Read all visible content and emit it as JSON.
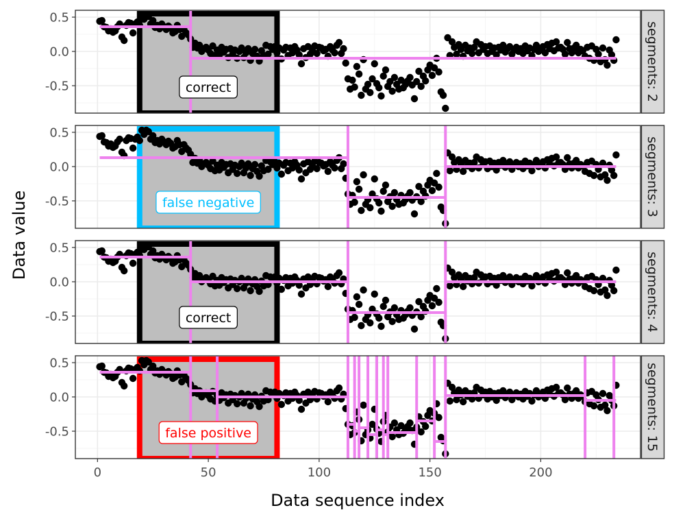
{
  "chart_data": {
    "type": "scatter",
    "xlabel": "Data sequence index",
    "ylabel": "Data value",
    "xlim": [
      -10,
      245
    ],
    "ylim": [
      -0.9,
      0.6
    ],
    "xticks": [
      0,
      50,
      100,
      150,
      200
    ],
    "yticks": [
      0.5,
      0.0,
      -0.5
    ],
    "ytick_labels": [
      "0.5",
      "0.0",
      "-0.5"
    ],
    "grid": true,
    "points": [
      [
        1,
        0.44
      ],
      [
        2,
        0.45
      ],
      [
        3,
        0.36
      ],
      [
        4,
        0.35
      ],
      [
        5,
        0.3
      ],
      [
        6,
        0.33
      ],
      [
        7,
        0.28
      ],
      [
        8,
        0.3
      ],
      [
        9,
        0.36
      ],
      [
        10,
        0.4
      ],
      [
        11,
        0.21
      ],
      [
        12,
        0.16
      ],
      [
        13,
        0.38
      ],
      [
        14,
        0.42
      ],
      [
        15,
        0.41
      ],
      [
        16,
        0.27
      ],
      [
        17,
        0.4
      ],
      [
        18,
        0.43
      ],
      [
        19,
        0.38
      ],
      [
        20,
        0.53
      ],
      [
        21,
        0.47
      ],
      [
        22,
        0.53
      ],
      [
        23,
        0.51
      ],
      [
        24,
        0.4
      ],
      [
        25,
        0.45
      ],
      [
        26,
        0.35
      ],
      [
        27,
        0.38
      ],
      [
        28,
        0.33
      ],
      [
        29,
        0.4
      ],
      [
        30,
        0.36
      ],
      [
        31,
        0.32
      ],
      [
        32,
        0.37
      ],
      [
        33,
        0.34
      ],
      [
        34,
        0.27
      ],
      [
        35,
        0.29
      ],
      [
        36,
        0.38
      ],
      [
        37,
        0.32
      ],
      [
        38,
        0.22
      ],
      [
        39,
        0.32
      ],
      [
        40,
        0.27
      ],
      [
        41,
        0.24
      ],
      [
        42,
        0.18
      ],
      [
        43,
        0.06
      ],
      [
        44,
        0.12
      ],
      [
        45,
        0.05
      ],
      [
        46,
        0.09
      ],
      [
        47,
        0.0
      ],
      [
        48,
        0.04
      ],
      [
        49,
        0.06
      ],
      [
        50,
        0.02
      ],
      [
        51,
        -0.03
      ],
      [
        52,
        0.08
      ],
      [
        53,
        -0.06
      ],
      [
        54,
        0.02
      ],
      [
        55,
        -0.05
      ],
      [
        56,
        0.06
      ],
      [
        57,
        -0.01
      ],
      [
        58,
        0.03
      ],
      [
        59,
        -0.09
      ],
      [
        60,
        0.04
      ],
      [
        61,
        -0.04
      ],
      [
        62,
        0.02
      ],
      [
        63,
        -0.1
      ],
      [
        64,
        0.0
      ],
      [
        65,
        0.05
      ],
      [
        66,
        -0.09
      ],
      [
        67,
        -0.02
      ],
      [
        68,
        0.04
      ],
      [
        69,
        -0.13
      ],
      [
        70,
        -0.03
      ],
      [
        71,
        0.03
      ],
      [
        72,
        -0.07
      ],
      [
        73,
        -0.14
      ],
      [
        74,
        0.01
      ],
      [
        75,
        -0.06
      ],
      [
        76,
        0.09
      ],
      [
        77,
        -0.04
      ],
      [
        78,
        0.07
      ],
      [
        79,
        0.03
      ],
      [
        80,
        0.07
      ],
      [
        81,
        -0.02
      ],
      [
        82,
        0.05
      ],
      [
        83,
        -0.11
      ],
      [
        84,
        0.02
      ],
      [
        85,
        0.06
      ],
      [
        86,
        -0.06
      ],
      [
        87,
        0.05
      ],
      [
        88,
        -0.02
      ],
      [
        89,
        0.07
      ],
      [
        90,
        0.02
      ],
      [
        91,
        -0.05
      ],
      [
        92,
        -0.18
      ],
      [
        93,
        0.04
      ],
      [
        94,
        -0.09
      ],
      [
        95,
        0.07
      ],
      [
        96,
        -0.04
      ],
      [
        97,
        0.01
      ],
      [
        98,
        0.08
      ],
      [
        99,
        -0.03
      ],
      [
        100,
        0.06
      ],
      [
        101,
        0.05
      ],
      [
        102,
        0.01
      ],
      [
        103,
        0.03
      ],
      [
        104,
        -0.07
      ],
      [
        105,
        0.07
      ],
      [
        106,
        0.02
      ],
      [
        107,
        -0.02
      ],
      [
        108,
        0.09
      ],
      [
        109,
        0.13
      ],
      [
        110,
        -0.03
      ],
      [
        111,
        0.04
      ],
      [
        112,
        -0.17
      ],
      [
        113,
        -0.4
      ],
      [
        114,
        -0.55
      ],
      [
        115,
        -0.42
      ],
      [
        116,
        -0.52
      ],
      [
        117,
        -0.22
      ],
      [
        118,
        -0.33
      ],
      [
        119,
        -0.64
      ],
      [
        120,
        -0.12
      ],
      [
        121,
        -0.55
      ],
      [
        122,
        -0.48
      ],
      [
        123,
        -0.6
      ],
      [
        124,
        -0.4
      ],
      [
        125,
        -0.18
      ],
      [
        126,
        -0.47
      ],
      [
        127,
        -0.53
      ],
      [
        128,
        -0.65
      ],
      [
        129,
        -0.36
      ],
      [
        130,
        -0.27
      ],
      [
        131,
        -0.51
      ],
      [
        132,
        -0.44
      ],
      [
        133,
        -0.58
      ],
      [
        134,
        -0.38
      ],
      [
        135,
        -0.48
      ],
      [
        136,
        -0.55
      ],
      [
        137,
        -0.42
      ],
      [
        138,
        -0.53
      ],
      [
        139,
        -0.48
      ],
      [
        140,
        -0.43
      ],
      [
        141,
        -0.38
      ],
      [
        142,
        -0.49
      ],
      [
        143,
        -0.69
      ],
      [
        144,
        -0.44
      ],
      [
        145,
        -0.29
      ],
      [
        146,
        -0.51
      ],
      [
        147,
        -0.36
      ],
      [
        148,
        -0.43
      ],
      [
        149,
        -0.27
      ],
      [
        150,
        -0.2
      ],
      [
        151,
        -0.35
      ],
      [
        152,
        -0.24
      ],
      [
        153,
        -0.1
      ],
      [
        154,
        -0.3
      ],
      [
        155,
        -0.59
      ],
      [
        156,
        -0.64
      ],
      [
        157,
        -0.83
      ],
      [
        158,
        0.2
      ],
      [
        159,
        -0.06
      ],
      [
        160,
        0.14
      ],
      [
        161,
        0.06
      ],
      [
        162,
        -0.04
      ],
      [
        163,
        0.1
      ],
      [
        164,
        0.03
      ],
      [
        165,
        -0.07
      ],
      [
        166,
        0.09
      ],
      [
        167,
        0.01
      ],
      [
        168,
        0.05
      ],
      [
        169,
        -0.03
      ],
      [
        170,
        0.06
      ],
      [
        171,
        0.14
      ],
      [
        172,
        -0.02
      ],
      [
        173,
        0.1
      ],
      [
        174,
        0.03
      ],
      [
        175,
        0.07
      ],
      [
        176,
        -0.03
      ],
      [
        177,
        0.08
      ],
      [
        178,
        0.0
      ],
      [
        179,
        0.05
      ],
      [
        180,
        -0.05
      ],
      [
        181,
        0.06
      ],
      [
        182,
        0.02
      ],
      [
        183,
        0.09
      ],
      [
        184,
        -0.01
      ],
      [
        185,
        0.04
      ],
      [
        186,
        0.07
      ],
      [
        187,
        -0.04
      ],
      [
        188,
        0.02
      ],
      [
        189,
        0.06
      ],
      [
        190,
        0.0
      ],
      [
        191,
        0.04
      ],
      [
        192,
        -0.03
      ],
      [
        193,
        0.08
      ],
      [
        194,
        0.01
      ],
      [
        195,
        0.05
      ],
      [
        196,
        -0.06
      ],
      [
        197,
        0.03
      ],
      [
        198,
        0.09
      ],
      [
        199,
        0.0
      ],
      [
        200,
        0.02
      ],
      [
        201,
        0.07
      ],
      [
        202,
        -0.02
      ],
      [
        203,
        0.1
      ],
      [
        204,
        0.04
      ],
      [
        205,
        0.12
      ],
      [
        206,
        0.01
      ],
      [
        207,
        0.14
      ],
      [
        208,
        0.05
      ],
      [
        209,
        0.06
      ],
      [
        210,
        0.03
      ],
      [
        211,
        -0.04
      ],
      [
        212,
        0.13
      ],
      [
        213,
        0.04
      ],
      [
        214,
        -0.02
      ],
      [
        215,
        0.05
      ],
      [
        216,
        0.09
      ],
      [
        217,
        -0.02
      ],
      [
        218,
        0.03
      ],
      [
        219,
        0.01
      ],
      [
        220,
        -0.07
      ],
      [
        221,
        0.06
      ],
      [
        222,
        -0.1
      ],
      [
        223,
        0.08
      ],
      [
        224,
        -0.13
      ],
      [
        225,
        0.03
      ],
      [
        226,
        -0.04
      ],
      [
        227,
        -0.15
      ],
      [
        228,
        0.05
      ],
      [
        229,
        -0.12
      ],
      [
        230,
        -0.2
      ],
      [
        231,
        0.02
      ],
      [
        232,
        -0.05
      ],
      [
        233,
        -0.13
      ],
      [
        234,
        0.17
      ]
    ],
    "panels": [
      {
        "strip": "segments: 2",
        "annotation": "correct",
        "ann_color": "#000000",
        "box": {
          "x": [
            19,
            81
          ],
          "y_top": 0.55,
          "y_bottom": -0.9,
          "border": "#000000"
        },
        "changepoints": [
          42
        ],
        "segments": [
          [
            1,
            42,
            0.36
          ],
          [
            42,
            234,
            -0.1
          ]
        ]
      },
      {
        "strip": "segments: 3",
        "annotation": "false negative",
        "ann_color": "#00bfff",
        "box": {
          "x": [
            19,
            81
          ],
          "y_top": 0.55,
          "y_bottom": -0.9,
          "border": "#00bfff"
        },
        "changepoints": [
          113,
          157
        ],
        "segments": [
          [
            1,
            113,
            0.13
          ],
          [
            113,
            157,
            -0.45
          ],
          [
            157,
            234,
            0.0
          ]
        ]
      },
      {
        "strip": "segments: 4",
        "annotation": "correct",
        "ann_color": "#000000",
        "box": {
          "x": [
            19,
            81
          ],
          "y_top": 0.55,
          "y_bottom": -0.9,
          "border": "#000000"
        },
        "changepoints": [
          42,
          113,
          157
        ],
        "segments": [
          [
            1,
            42,
            0.36
          ],
          [
            42,
            113,
            0.0
          ],
          [
            113,
            157,
            -0.45
          ],
          [
            157,
            234,
            0.0
          ]
        ]
      },
      {
        "strip": "segments: 15",
        "annotation": "false positive",
        "ann_color": "#ff0000",
        "box": {
          "x": [
            19,
            81
          ],
          "y_top": 0.55,
          "y_bottom": -0.9,
          "border": "#ff0000"
        },
        "changepoints": [
          42,
          54,
          113,
          116,
          118,
          122,
          126,
          129,
          131,
          144,
          152,
          157,
          220,
          233
        ],
        "segments": [
          [
            1,
            42,
            0.36
          ],
          [
            42,
            54,
            0.09
          ],
          [
            54,
            113,
            0.0
          ],
          [
            113,
            116,
            -0.4
          ],
          [
            116,
            118,
            -0.5
          ],
          [
            118,
            122,
            -0.45
          ],
          [
            122,
            126,
            -0.55
          ],
          [
            126,
            129,
            -0.48
          ],
          [
            129,
            131,
            -0.55
          ],
          [
            131,
            144,
            -0.52
          ],
          [
            144,
            152,
            -0.35
          ],
          [
            152,
            157,
            -0.65
          ],
          [
            157,
            220,
            0.02
          ],
          [
            220,
            233,
            -0.05
          ],
          [
            233,
            234,
            -0.05
          ]
        ]
      }
    ],
    "colors": {
      "points": "#000000",
      "segment_lines": "#ee82ee",
      "box_fill": "#bebebe",
      "strip_fill": "#d9d9d9",
      "grid_major": "#ebebeb",
      "grid_minor": "#f5f5f5",
      "panel_border": "#333333"
    }
  }
}
